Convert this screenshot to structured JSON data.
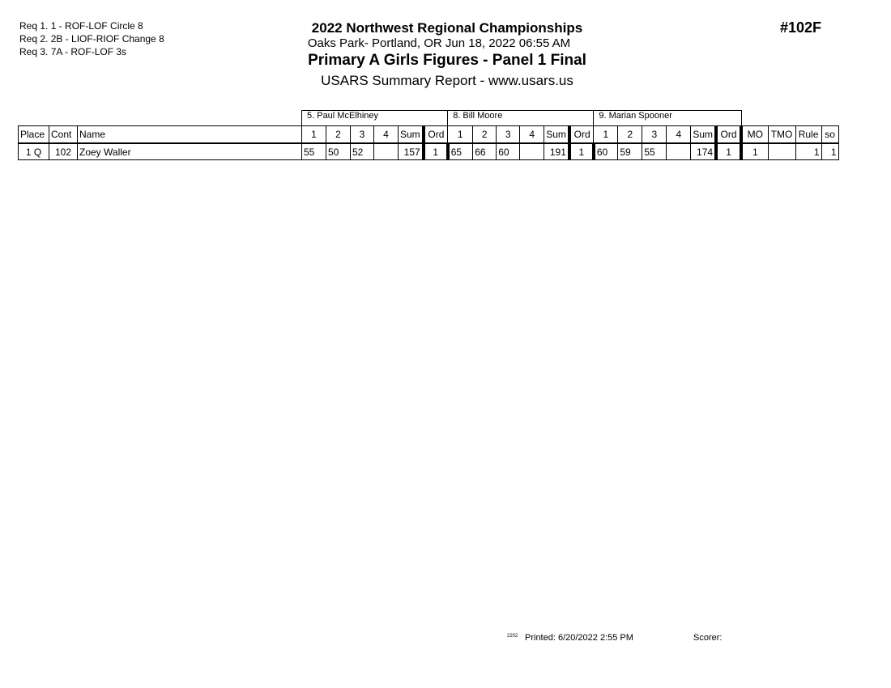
{
  "requirements": [
    "Req  1.  1 - ROF-LOF Circle 8",
    "Req  2.  2B - LIOF-RIOF Change 8",
    "Req  3.  7A - ROF-LOF 3s"
  ],
  "header": {
    "event": "2022 Northwest Regional Championships",
    "location": "Oaks Park- Portland, OR  Jun 18, 2022  06:55 AM",
    "title": "Primary A Girls Figures - Panel 1 Final",
    "subtitle": "USARS Summary Report - www.usars.us",
    "event_number": "#102F"
  },
  "judges": [
    "5.  Paul McElhiney",
    "8.  Bill Moore",
    "9.  Marian Spooner"
  ],
  "columns": {
    "place": "Place",
    "cont": "Cont",
    "name": "Name",
    "scores": [
      "1",
      "2",
      "3",
      "4"
    ],
    "sum": "Sum",
    "ord": "Ord",
    "mo": "MO",
    "tmo": "TMO",
    "rule": "Rule",
    "so": "so"
  },
  "rows": [
    {
      "place": "1 Q",
      "cont": "102",
      "name": "Zoey Waller",
      "judges": [
        {
          "scores": [
            "55",
            "50",
            "52",
            ""
          ],
          "sum": "157",
          "ord": "1"
        },
        {
          "scores": [
            "65",
            "66",
            "60",
            ""
          ],
          "sum": "191",
          "ord": "1"
        },
        {
          "scores": [
            "60",
            "59",
            "55",
            ""
          ],
          "sum": "174",
          "ord": "1"
        }
      ],
      "mo": "1",
      "tmo": "",
      "rule": "1",
      "so": "1"
    }
  ],
  "footer": {
    "code": "2202",
    "printed": "Printed:  6/20/2022  2:55 PM",
    "scorer": "Scorer:"
  }
}
